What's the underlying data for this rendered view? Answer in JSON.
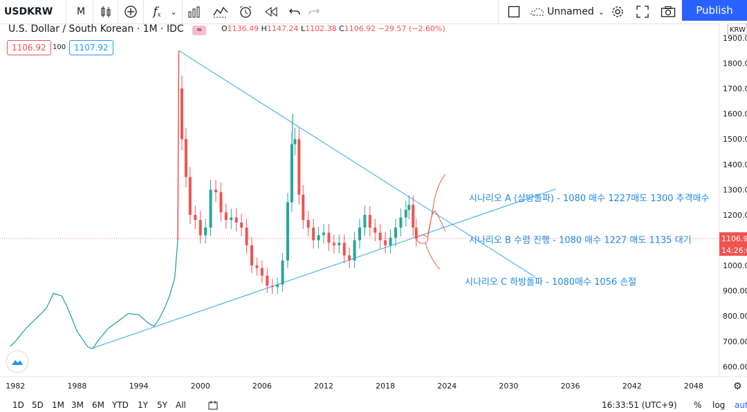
{
  "toolbar": {
    "symbol": "USDKRW",
    "interval": "M",
    "fx_label": "f",
    "layout_name": "Unnamed",
    "publish_label": "Publish"
  },
  "legend": {
    "title": "U.S. Dollar / South Korean · 1M · IDC",
    "ohlc": {
      "o_label": "O",
      "o": "1136.49",
      "h_label": "H",
      "h": "1147.24",
      "l_label": "L",
      "l": "1102.38",
      "c_label": "C",
      "c": "1106.92",
      "change": "−29.57 (−2.60%)"
    },
    "bid": "1106.92",
    "spread": "100",
    "ask": "1107.92"
  },
  "bottom": {
    "ranges": [
      "1D",
      "5D",
      "1M",
      "3M",
      "6M",
      "YTD",
      "1Y",
      "5Y",
      "All"
    ],
    "clock": "16:33:51 (UTC+9)",
    "percent": "%",
    "log": "log",
    "auto": "auto"
  },
  "colors": {
    "up": "#26a69a",
    "down": "#ef5350",
    "line": "#2196f3",
    "trend": "#4db6e8",
    "accent": "#2962ff",
    "scenario_text": "#1e88e5",
    "curve": "#ef5350"
  },
  "chart_data": {
    "type": "line",
    "symbol": "USDKRW",
    "title": "U.S. Dollar / South Korean · 1M · IDC",
    "xlabel": "",
    "ylabel": "",
    "x_ticks": [
      "1982",
      "1988",
      "1994",
      "2000",
      "2006",
      "2012",
      "2018",
      "2024",
      "2030",
      "2036",
      "2042",
      "2048"
    ],
    "y_ticks": [
      "1900.00",
      "1800.00",
      "1700.00",
      "1600.00",
      "1500.00",
      "1400.00",
      "1300.00",
      "1200.00",
      "1100.00",
      "1000.00",
      "900.00",
      "800.00",
      "700.00",
      "600.00"
    ],
    "axis_currency": "KRW",
    "xlim": [
      1980.5,
      2050.5
    ],
    "ylim": [
      560,
      1930
    ],
    "grid": false,
    "current_price_label": "1106.9",
    "countdown_label": "14:26:0",
    "series": [
      {
        "style": "line",
        "x": [
          1981.5,
          1982,
          1983,
          1984,
          1985,
          1985.7,
          1986.5,
          1987,
          1988,
          1989,
          1989.5,
          1990,
          1991,
          1992,
          1993,
          1994,
          1995,
          1995.5,
          1996,
          1996.5,
          1997,
          1997.5,
          1997.8
        ],
        "y": [
          680,
          700,
          750,
          790,
          830,
          890,
          880,
          840,
          740,
          680,
          670,
          700,
          750,
          780,
          810,
          805,
          770,
          760,
          790,
          830,
          880,
          950,
          1100
        ]
      },
      {
        "style": "candle",
        "x": [
          1997.9,
          1998.2,
          1998.6,
          1999,
          1999.5,
          2000,
          2000.5,
          2001,
          2001.5,
          2002,
          2002.5,
          2003,
          2003.5,
          2004,
          2004.5,
          2005,
          2005.5,
          2006,
          2006.5,
          2007,
          2007.5,
          2008,
          2008.5,
          2008.9,
          2009.2,
          2009.6,
          2010,
          2010.5,
          2011,
          2011.5,
          2012,
          2012.5,
          2013,
          2013.5,
          2014,
          2014.5,
          2015,
          2015.5,
          2016,
          2016.5,
          2017,
          2017.5,
          2018,
          2018.5,
          2019,
          2019.5,
          2020,
          2020.3,
          2020.7,
          2021
        ],
        "y": [
          1700,
          1500,
          1350,
          1200,
          1180,
          1120,
          1150,
          1300,
          1290,
          1210,
          1180,
          1190,
          1170,
          1150,
          1080,
          1000,
          990,
          960,
          920,
          915,
          925,
          1020,
          1250,
          1480,
          1500,
          1280,
          1180,
          1150,
          1100,
          1120,
          1130,
          1090,
          1080,
          1090,
          1040,
          1020,
          1100,
          1150,
          1200,
          1150,
          1130,
          1100,
          1080,
          1110,
          1150,
          1190,
          1220,
          1240,
          1150,
          1106.92
        ]
      }
    ],
    "trendlines": [
      {
        "from": [
          1997.9,
          1850
        ],
        "to": [
          2032.6,
          954
        ]
      },
      {
        "from": [
          1989.5,
          673
        ],
        "to": [
          2034.6,
          1303
        ]
      }
    ],
    "annotations": [
      "시나리오 A (상방돌파) -  1080 매수 1227매도 1300 추격매수",
      "시나리오 B 수렴 진행 -  1080 매수 1227 매도 1135 대기",
      "시나리오 C 하방돌파 - 1080매수 1056 손절"
    ]
  }
}
